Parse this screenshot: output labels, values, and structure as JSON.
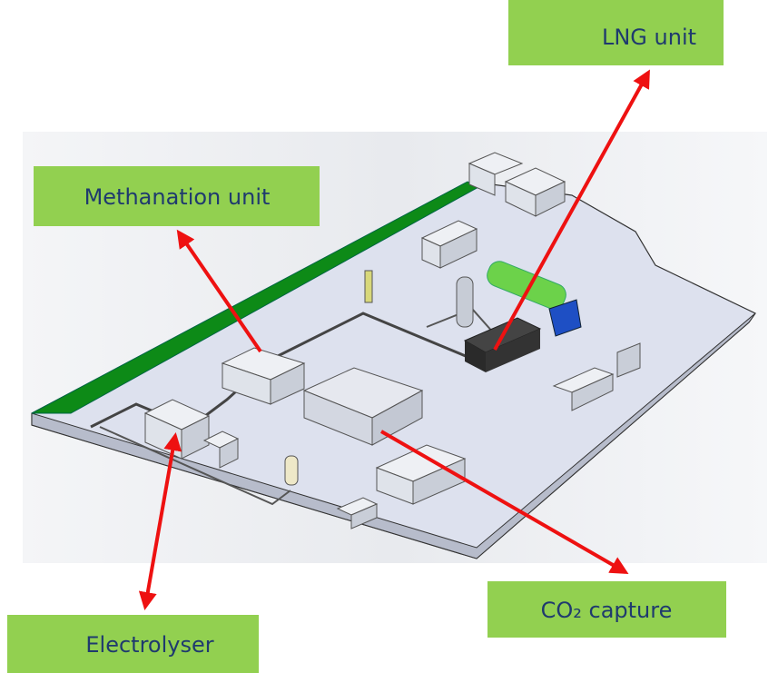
{
  "labels": {
    "lng": "LNG unit",
    "methanation": "Methanation unit",
    "co2": "CO₂ capture",
    "electrolyser": "Electrolyser"
  }
}
